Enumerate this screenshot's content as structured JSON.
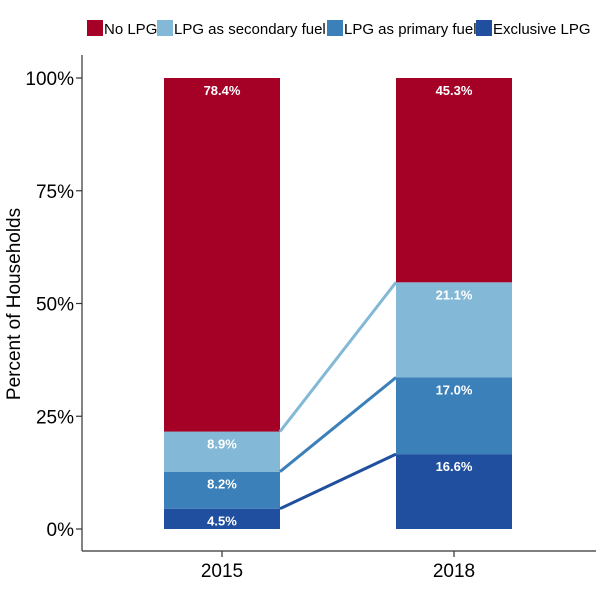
{
  "chart_data": {
    "type": "bar",
    "stacked": true,
    "categories": [
      "2015",
      "2018"
    ],
    "series": [
      {
        "name": "No LPG",
        "values": [
          78.4,
          45.3
        ],
        "color": "#A50026"
      },
      {
        "name": "LPG as secondary fuel",
        "values": [
          8.9,
          21.1
        ],
        "color": "#83B8D6"
      },
      {
        "name": "LPG as primary fuel",
        "values": [
          8.2,
          17.0
        ],
        "color": "#3B80B9"
      },
      {
        "name": "Exclusive LPG",
        "values": [
          4.5,
          16.6
        ],
        "color": "#1F4F9E"
      }
    ],
    "data_labels": [
      [
        "78.4%",
        "45.3%"
      ],
      [
        "8.9%",
        "21.1%"
      ],
      [
        "8.2%",
        "17.0%"
      ],
      [
        "4.5%",
        "16.6%"
      ]
    ],
    "ylabel": "Percent of Households",
    "xlabel": "",
    "ylim": [
      0,
      100
    ],
    "yticks": [
      0,
      25,
      50,
      75,
      100
    ],
    "ytick_labels": [
      "0%",
      "25%",
      "50%",
      "75%",
      "100%"
    ],
    "grid": false,
    "legend_position": "top",
    "connector_lines": true
  }
}
